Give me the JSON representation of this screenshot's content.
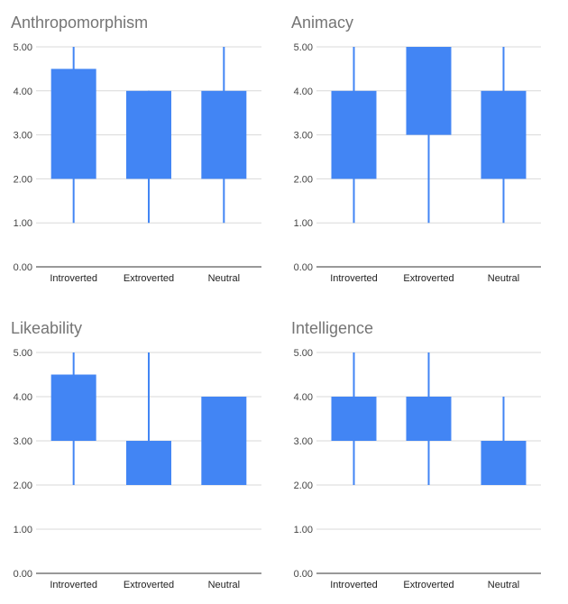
{
  "chart_data": [
    {
      "type": "box",
      "title": "Anthropomorphism",
      "categories": [
        "Introverted",
        "Extroverted",
        "Neutral"
      ],
      "ylim": [
        0,
        5
      ],
      "y_ticks": [
        "0.00",
        "1.00",
        "2.00",
        "3.00",
        "4.00",
        "5.00"
      ],
      "grid": true,
      "color": "#4285f4",
      "boxes": [
        {
          "min": 1,
          "q1": 2,
          "q3": 4.5,
          "max": 5
        },
        {
          "min": 1,
          "q1": 2,
          "q3": 4,
          "max": 4
        },
        {
          "min": 1,
          "q1": 2,
          "q3": 4,
          "max": 5
        }
      ]
    },
    {
      "type": "box",
      "title": "Animacy",
      "categories": [
        "Introverted",
        "Extroverted",
        "Neutral"
      ],
      "ylim": [
        0,
        5
      ],
      "y_ticks": [
        "0.00",
        "1.00",
        "2.00",
        "3.00",
        "4.00",
        "5.00"
      ],
      "grid": true,
      "color": "#4285f4",
      "boxes": [
        {
          "min": 1,
          "q1": 2,
          "q3": 4,
          "max": 5
        },
        {
          "min": 1,
          "q1": 3,
          "q3": 5,
          "max": 5
        },
        {
          "min": 1,
          "q1": 2,
          "q3": 4,
          "max": 5
        }
      ]
    },
    {
      "type": "box",
      "title": "Likeability",
      "categories": [
        "Introverted",
        "Extroverted",
        "Neutral"
      ],
      "ylim": [
        0,
        5
      ],
      "y_ticks": [
        "0.00",
        "1.00",
        "2.00",
        "3.00",
        "4.00",
        "5.00"
      ],
      "grid": true,
      "color": "#4285f4",
      "boxes": [
        {
          "min": 2,
          "q1": 3,
          "q3": 4.5,
          "max": 5
        },
        {
          "min": 2,
          "q1": 2,
          "q3": 3,
          "max": 5
        },
        {
          "min": 2,
          "q1": 2,
          "q3": 4,
          "max": 4
        }
      ]
    },
    {
      "type": "box",
      "title": "Intelligence",
      "categories": [
        "Introverted",
        "Extroverted",
        "Neutral"
      ],
      "ylim": [
        0,
        5
      ],
      "y_ticks": [
        "0.00",
        "1.00",
        "2.00",
        "3.00",
        "4.00",
        "5.00"
      ],
      "grid": true,
      "color": "#4285f4",
      "boxes": [
        {
          "min": 2,
          "q1": 3,
          "q3": 4,
          "max": 5
        },
        {
          "min": 2,
          "q1": 3,
          "q3": 4,
          "max": 5
        },
        {
          "min": 2,
          "q1": 2,
          "q3": 3,
          "max": 4
        }
      ]
    }
  ]
}
